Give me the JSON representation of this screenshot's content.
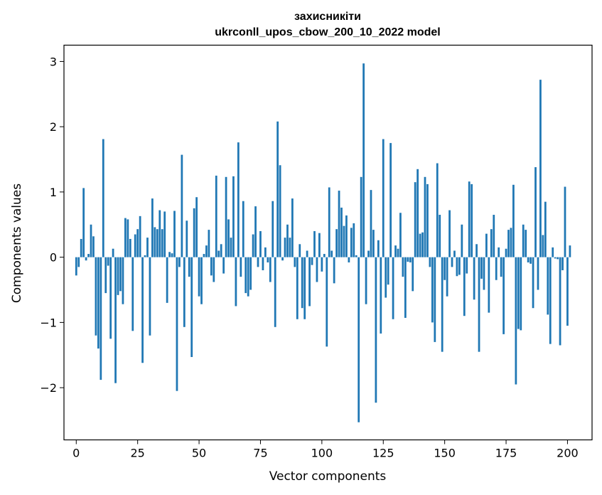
{
  "chart_data": {
    "type": "bar",
    "title": "захисникіти",
    "subtitle": "ukrconll_upos_cbow_200_10_2022 model",
    "xlabel": "Vector components",
    "ylabel": "Components values",
    "xlim": [
      -5,
      210
    ],
    "ylim": [
      -2.8,
      3.25
    ],
    "xticks": [
      0,
      25,
      50,
      75,
      100,
      125,
      150,
      175,
      200
    ],
    "yticks": [
      -2,
      -1,
      0,
      1,
      2,
      3
    ],
    "ytick_labels": [
      "−2",
      "−1",
      "0",
      "1",
      "2",
      "3"
    ],
    "grid": false,
    "bar_color": "#1f77b4",
    "values": [
      -0.28,
      -0.15,
      0.28,
      1.06,
      -0.05,
      0.05,
      0.5,
      0.32,
      -1.2,
      -1.4,
      -1.88,
      1.81,
      -0.55,
      -0.13,
      -1.25,
      0.13,
      -1.93,
      -0.58,
      -0.52,
      -0.72,
      0.6,
      0.58,
      0.28,
      -1.13,
      0.35,
      0.43,
      0.63,
      -1.62,
      0.03,
      0.3,
      -1.2,
      0.9,
      0.46,
      0.43,
      0.72,
      0.43,
      0.7,
      -0.7,
      0.08,
      0.06,
      0.71,
      -2.05,
      -0.15,
      1.57,
      -1.07,
      0.56,
      -0.3,
      -1.53,
      0.75,
      0.92,
      -0.6,
      -0.72,
      0.05,
      0.18,
      0.42,
      -0.28,
      -0.38,
      1.25,
      0.1,
      0.2,
      -0.25,
      1.23,
      0.58,
      0.3,
      1.24,
      -0.75,
      1.76,
      -0.3,
      0.86,
      -0.55,
      -0.6,
      -0.5,
      0.35,
      0.78,
      -0.15,
      0.4,
      -0.2,
      0.15,
      -0.08,
      -0.38,
      0.86,
      -1.07,
      2.08,
      1.41,
      -0.05,
      0.3,
      0.5,
      0.3,
      0.9,
      -0.15,
      -0.95,
      0.2,
      -0.78,
      -0.95,
      0.1,
      -0.75,
      -0.12,
      0.4,
      -0.38,
      0.37,
      -0.22,
      0.05,
      -1.37,
      1.07,
      0.1,
      -0.4,
      0.43,
      1.02,
      0.76,
      0.48,
      0.64,
      -0.08,
      0.45,
      0.52,
      0.03,
      -2.53,
      1.23,
      2.97,
      -0.72,
      0.1,
      1.03,
      0.42,
      -2.23,
      0.26,
      -1.17,
      1.81,
      -0.62,
      -0.42,
      1.75,
      -0.95,
      0.18,
      0.13,
      0.68,
      -0.3,
      -0.93,
      -0.07,
      -0.08,
      -0.52,
      1.15,
      1.35,
      0.36,
      0.38,
      1.23,
      1.12,
      -0.15,
      -1.0,
      -1.3,
      1.44,
      0.65,
      -1.45,
      -0.35,
      -0.6,
      0.72,
      -0.15,
      0.1,
      -0.29,
      -0.27,
      0.5,
      -0.9,
      -0.25,
      1.16,
      1.12,
      -0.65,
      0.2,
      -1.45,
      -0.33,
      -0.5,
      0.36,
      -0.85,
      0.43,
      0.65,
      -0.35,
      0.15,
      -0.3,
      -1.18,
      0.13,
      0.42,
      0.45,
      1.11,
      -1.95,
      -1.1,
      -1.12,
      0.5,
      0.42,
      -0.08,
      -0.1,
      -0.78,
      1.38,
      -0.5,
      2.72,
      0.34,
      0.85,
      -0.88,
      -1.33,
      0.15,
      -0.02,
      -0.03,
      -1.35,
      -0.2,
      1.08,
      -1.05,
      0.18
    ]
  }
}
